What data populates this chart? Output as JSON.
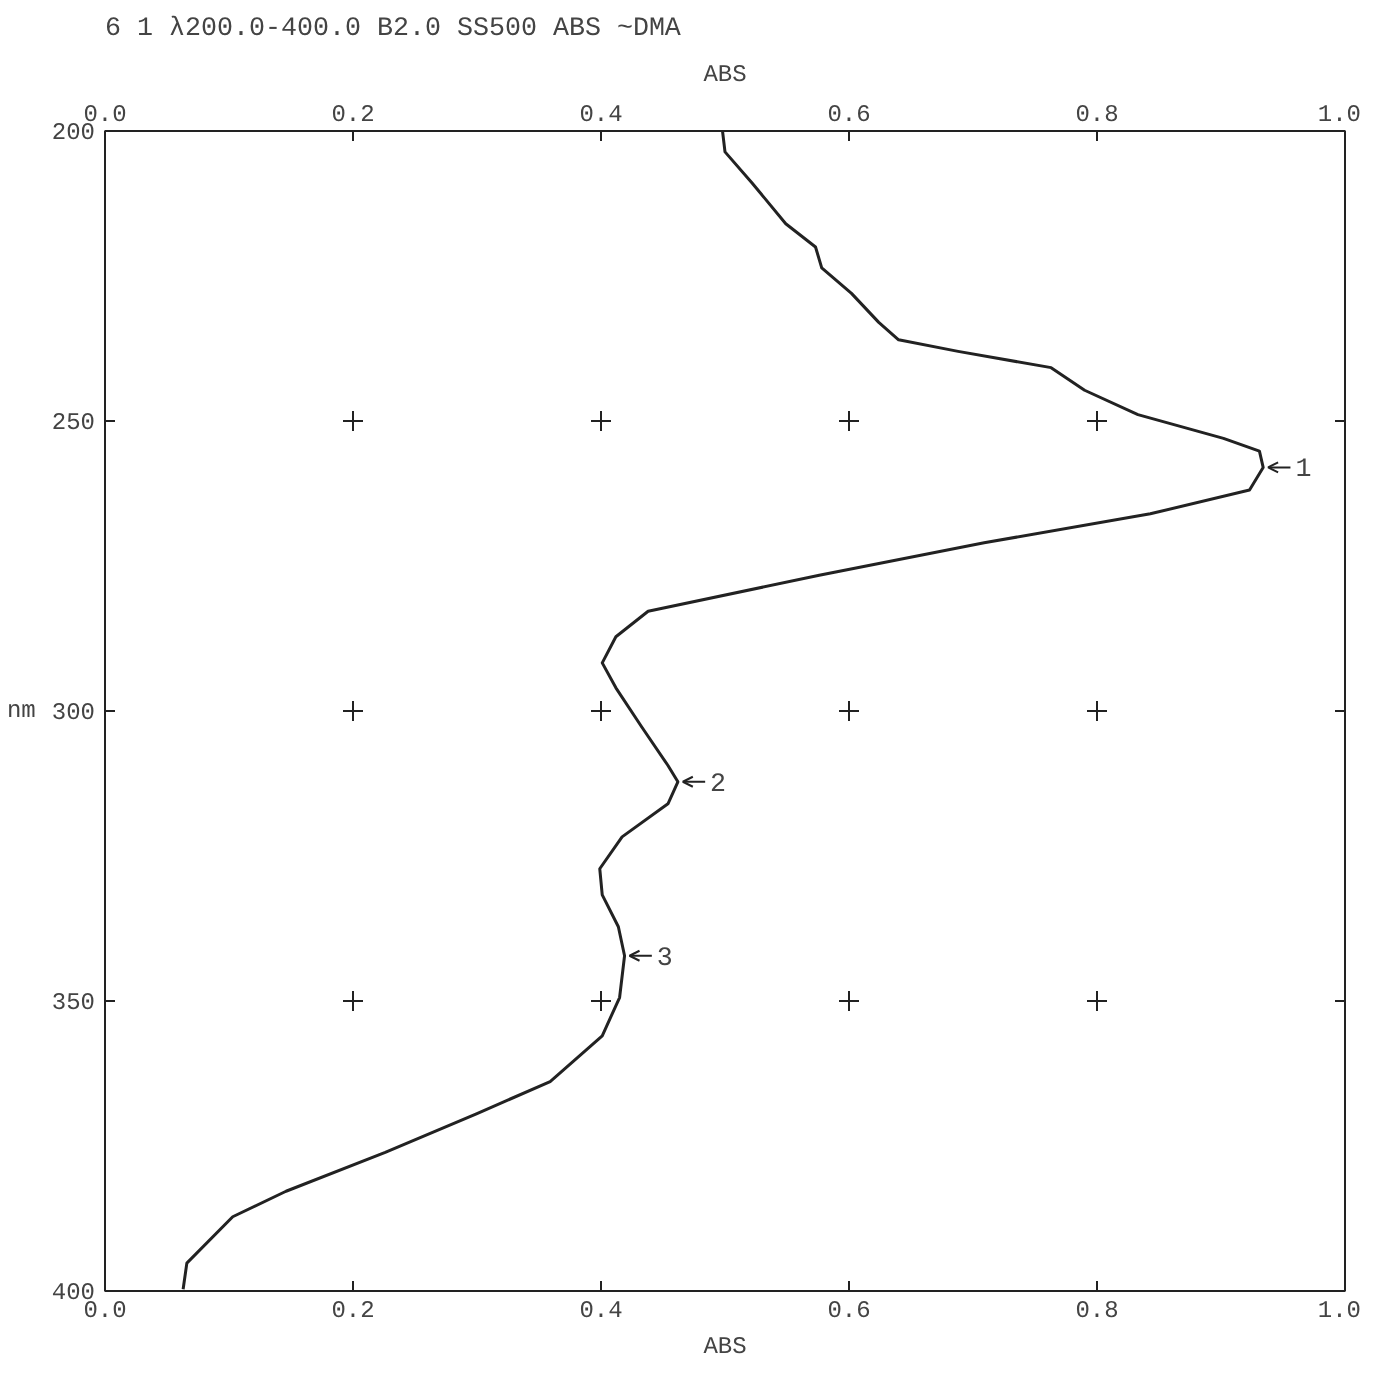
{
  "chart_data": {
    "type": "line",
    "title": "6  1 λ200.0-400.0 B2.0 SS500  ABS ~DMA",
    "xlabel": "ABS",
    "x2label": "ABS",
    "ylabel": "nm",
    "xlim": [
      0,
      1
    ],
    "x2lim": [
      0,
      1
    ],
    "ylim": [
      400,
      200
    ],
    "xticks": [
      {
        "value": 0,
        "label": "0.0"
      },
      {
        "value": 0.2,
        "label": "0.2"
      },
      {
        "value": 0.4,
        "label": "0.4"
      },
      {
        "value": 0.6,
        "label": "0.6"
      },
      {
        "value": 0.8,
        "label": "0.8"
      },
      {
        "value": 1,
        "label": "1.0"
      }
    ],
    "x2ticks": [
      {
        "value": 0,
        "label": "0.0"
      },
      {
        "value": 0.2,
        "label": "0.2"
      },
      {
        "value": 0.4,
        "label": "0.4"
      },
      {
        "value": 0.6,
        "label": "0.6"
      },
      {
        "value": 0.8,
        "label": "0.8"
      },
      {
        "value": 1,
        "label": "1.0"
      }
    ],
    "yticks": [
      200,
      250,
      300,
      350,
      400
    ],
    "grid": true,
    "marker": "none",
    "line_style": "solid",
    "series": [
      {
        "color": "#222222",
        "x": [
          0.498,
          0.5,
          0.522,
          0.549,
          0.573,
          0.578,
          0.602,
          0.624,
          0.64,
          0.688,
          0.763,
          0.79,
          0.833,
          0.902,
          0.931,
          0.934,
          0.923,
          0.843,
          0.709,
          0.576,
          0.438,
          0.412,
          0.401,
          0.412,
          0.433,
          0.454,
          0.462,
          0.454,
          0.417,
          0.399,
          0.401,
          0.414,
          0.419,
          0.415,
          0.401,
          0.359,
          0.3,
          0.226,
          0.146,
          0.103,
          0.066,
          0.063
        ],
        "values": [
          200,
          203.6,
          209,
          216,
          220,
          223.6,
          228,
          233,
          236,
          238,
          240.8,
          244.7,
          248.9,
          253,
          255.2,
          258,
          261.9,
          266,
          271,
          276.6,
          282.8,
          287.2,
          291.7,
          296,
          302.8,
          309.4,
          312.2,
          316,
          321.7,
          327.2,
          331.7,
          337.2,
          342.2,
          349.4,
          356,
          363.9,
          369.4,
          376.1,
          382.8,
          387.2,
          395.2,
          399.7
        ]
      }
    ],
    "annotations": [
      {
        "text": "1",
        "x": 0.934,
        "y": 258
      },
      {
        "text": "2",
        "x": 0.462,
        "y": 312.2
      },
      {
        "text": "3",
        "x": 0.419,
        "y": 342.2
      }
    ]
  }
}
